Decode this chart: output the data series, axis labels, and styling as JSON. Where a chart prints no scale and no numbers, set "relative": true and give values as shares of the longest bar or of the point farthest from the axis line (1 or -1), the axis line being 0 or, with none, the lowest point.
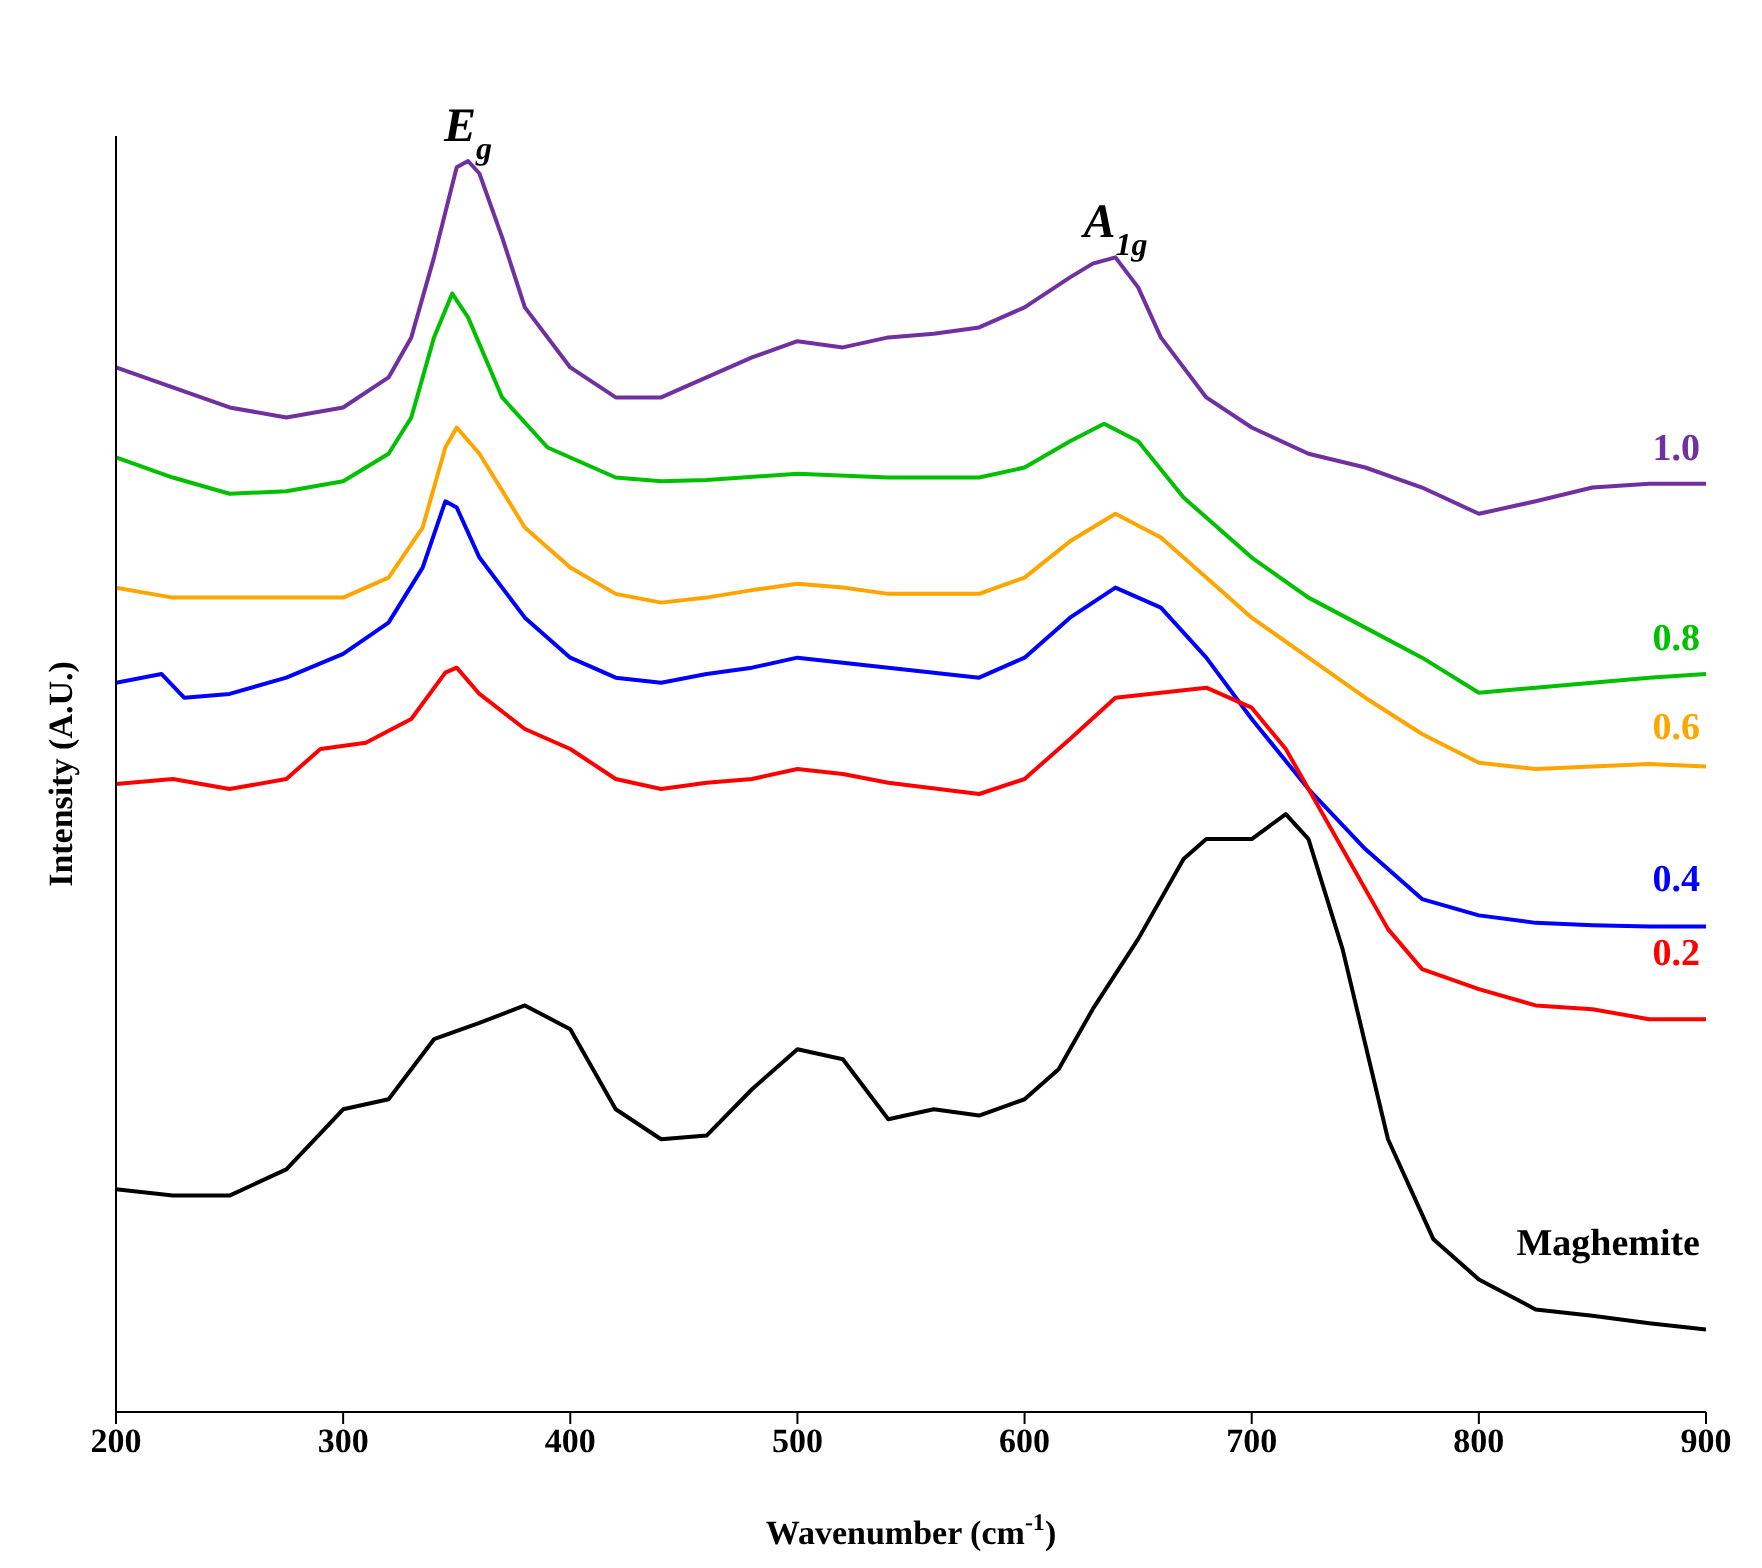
{
  "chart_data": {
    "type": "line",
    "xlabel": "Wavenumber (cm$^{-1}$)",
    "ylabel": "Intensity (A.U.)",
    "relative": true,
    "xlim": [
      200,
      900
    ],
    "xticks": [
      200,
      300,
      400,
      500,
      600,
      700,
      800,
      900
    ],
    "grid": false,
    "legend": false,
    "marker": "none",
    "line_style": "solid",
    "annotations": [
      {
        "text": "E$_{g}$",
        "x": 355,
        "y": 1
      },
      {
        "text": "A$_{1g}$",
        "x": 640,
        "y": 0.923
      }
    ],
    "series": [
      {
        "name": "1.0",
        "color": "#7030a0",
        "x": [
          200,
          225,
          250,
          275,
          300,
          320,
          330,
          340,
          350,
          355,
          360,
          370,
          380,
          400,
          420,
          440,
          460,
          480,
          500,
          520,
          540,
          560,
          580,
          600,
          620,
          630,
          640,
          650,
          660,
          680,
          700,
          725,
          750,
          775,
          800,
          825,
          850,
          875,
          900
        ],
        "values": [
          0.835,
          0.819,
          0.803,
          0.795,
          0.803,
          0.827,
          0.859,
          0.923,
          0.995,
          1,
          0.99,
          0.939,
          0.883,
          0.835,
          0.811,
          0.811,
          0.827,
          0.843,
          0.856,
          0.851,
          0.859,
          0.862,
          0.867,
          0.883,
          0.907,
          0.918,
          0.923,
          0.899,
          0.859,
          0.811,
          0.787,
          0.766,
          0.755,
          0.739,
          0.718,
          0.728,
          0.739,
          0.742,
          0.742
        ]
      },
      {
        "name": "0.8",
        "color": "#00c000",
        "x": [
          200,
          225,
          250,
          275,
          300,
          320,
          330,
          340,
          348,
          355,
          370,
          390,
          420,
          440,
          460,
          500,
          540,
          580,
          600,
          620,
          635,
          650,
          670,
          700,
          725,
          750,
          775,
          800,
          825,
          850,
          875,
          900
        ],
        "values": [
          0.763,
          0.747,
          0.734,
          0.736,
          0.744,
          0.766,
          0.795,
          0.859,
          0.894,
          0.875,
          0.811,
          0.771,
          0.747,
          0.744,
          0.745,
          0.75,
          0.747,
          0.747,
          0.755,
          0.776,
          0.79,
          0.776,
          0.731,
          0.683,
          0.651,
          0.627,
          0.603,
          0.575,
          0.579,
          0.583,
          0.587,
          0.59
        ]
      },
      {
        "name": "0.6",
        "color": "#ffa500",
        "x": [
          200,
          225,
          250,
          275,
          300,
          320,
          335,
          345,
          350,
          360,
          380,
          400,
          420,
          440,
          460,
          480,
          500,
          520,
          540,
          580,
          600,
          620,
          640,
          660,
          680,
          700,
          725,
          750,
          775,
          800,
          825,
          850,
          875,
          900
        ],
        "values": [
          0.659,
          0.651,
          0.651,
          0.651,
          0.651,
          0.667,
          0.707,
          0.771,
          0.787,
          0.766,
          0.707,
          0.675,
          0.654,
          0.647,
          0.651,
          0.657,
          0.662,
          0.659,
          0.654,
          0.654,
          0.667,
          0.696,
          0.718,
          0.699,
          0.667,
          0.635,
          0.603,
          0.571,
          0.542,
          0.519,
          0.514,
          0.516,
          0.518,
          0.516
        ]
      },
      {
        "name": "0.4",
        "color": "#0000ff",
        "x": [
          200,
          220,
          230,
          250,
          275,
          300,
          320,
          335,
          345,
          350,
          360,
          380,
          400,
          420,
          440,
          460,
          480,
          500,
          520,
          540,
          580,
          600,
          620,
          640,
          660,
          680,
          700,
          725,
          750,
          775,
          800,
          825,
          850,
          875,
          900
        ],
        "values": [
          0.583,
          0.59,
          0.571,
          0.574,
          0.587,
          0.606,
          0.631,
          0.675,
          0.728,
          0.723,
          0.683,
          0.635,
          0.603,
          0.587,
          0.583,
          0.59,
          0.595,
          0.603,
          0.599,
          0.595,
          0.587,
          0.603,
          0.635,
          0.659,
          0.643,
          0.603,
          0.554,
          0.498,
          0.45,
          0.41,
          0.397,
          0.391,
          0.389,
          0.388,
          0.388
        ]
      },
      {
        "name": "0.2",
        "color": "#ff0000",
        "x": [
          200,
          225,
          250,
          275,
          290,
          310,
          330,
          345,
          350,
          360,
          380,
          400,
          420,
          440,
          460,
          480,
          500,
          520,
          540,
          580,
          600,
          620,
          640,
          660,
          680,
          700,
          715,
          740,
          760,
          775,
          800,
          825,
          850,
          875,
          900
        ],
        "values": [
          0.502,
          0.506,
          0.498,
          0.506,
          0.53,
          0.535,
          0.554,
          0.591,
          0.595,
          0.574,
          0.546,
          0.53,
          0.506,
          0.498,
          0.503,
          0.506,
          0.514,
          0.51,
          0.503,
          0.494,
          0.506,
          0.538,
          0.571,
          0.575,
          0.579,
          0.563,
          0.53,
          0.45,
          0.386,
          0.354,
          0.338,
          0.325,
          0.322,
          0.314,
          0.314
        ]
      },
      {
        "name": "Maghemite",
        "color": "#000000",
        "x": [
          200,
          225,
          250,
          275,
          300,
          320,
          340,
          360,
          380,
          400,
          420,
          440,
          460,
          480,
          500,
          520,
          540,
          560,
          580,
          600,
          615,
          630,
          650,
          670,
          680,
          700,
          715,
          725,
          740,
          760,
          780,
          800,
          825,
          850,
          875,
          900
        ],
        "values": [
          0.178,
          0.173,
          0.173,
          0.194,
          0.242,
          0.25,
          0.298,
          0.311,
          0.325,
          0.306,
          0.242,
          0.218,
          0.221,
          0.258,
          0.29,
          0.282,
          0.234,
          0.242,
          0.237,
          0.25,
          0.274,
          0.322,
          0.378,
          0.442,
          0.458,
          0.458,
          0.478,
          0.458,
          0.37,
          0.218,
          0.138,
          0.106,
          0.082,
          0.077,
          0.071,
          0.066
        ]
      }
    ]
  }
}
